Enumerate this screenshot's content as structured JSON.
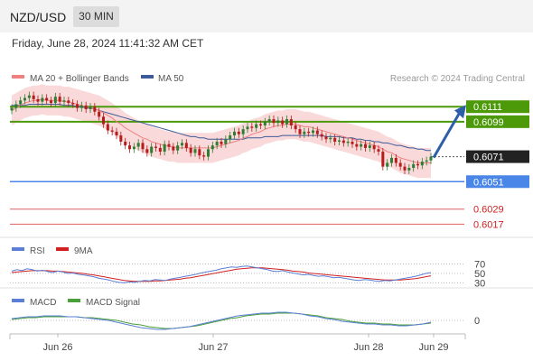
{
  "header": {
    "pair": "NZD/USD",
    "timeframe": "30 MIN",
    "datetime": "Friday, June 28, 2024 11:41:32 AM CET"
  },
  "legend": {
    "ma20": "MA 20 + Bollinger Bands",
    "ma50": "MA 50",
    "credit": "Research © 2024 Trading Central",
    "rsi": "RSI",
    "rsi_ma": "9MA",
    "macd": "MACD",
    "macd_signal": "MACD Signal"
  },
  "colors": {
    "ma20": "#f08080",
    "ma50": "#3d5a99",
    "bollinger_fill": "#f8cfcf",
    "candle_up": "#2e7d32",
    "candle_down": "#b71c1c",
    "resistance": "#4c9a0a",
    "support": "#4a86e8",
    "target": "#e06060",
    "current": "#222222",
    "arrow": "#2c5fa8",
    "rsi": "#5b7fd6",
    "rsi_ma": "#d12020",
    "macd": "#5b7fd6",
    "macd_signal": "#4aa03a"
  },
  "chart_data": [
    {
      "type": "candlestick",
      "title": "NZD/USD",
      "ylim": [
        0.601,
        0.6122
      ],
      "levels": [
        {
          "value": 0.6111,
          "label": "0.6111",
          "kind": "resistance"
        },
        {
          "value": 0.6099,
          "label": "0.6099",
          "kind": "resistance"
        },
        {
          "value": 0.6071,
          "label": "0.6071",
          "kind": "current"
        },
        {
          "value": 0.6051,
          "label": "0.6051",
          "kind": "support"
        },
        {
          "value": 0.6029,
          "label": "0.6029",
          "kind": "target"
        },
        {
          "value": 0.6017,
          "label": "0.6017",
          "kind": "target"
        }
      ],
      "x_ticks": [
        "Jun 26",
        "Jun 27",
        "Jun 28",
        "Jun 29"
      ],
      "close": [
        0.611,
        0.6113,
        0.6116,
        0.6118,
        0.612,
        0.6117,
        0.6115,
        0.6118,
        0.6116,
        0.6114,
        0.6119,
        0.6115,
        0.6116,
        0.6114,
        0.6113,
        0.611,
        0.6112,
        0.6109,
        0.6111,
        0.6107,
        0.6103,
        0.6097,
        0.6092,
        0.6091,
        0.6088,
        0.6083,
        0.608,
        0.6077,
        0.6079,
        0.6082,
        0.6077,
        0.6074,
        0.6079,
        0.6078,
        0.6075,
        0.6081,
        0.6079,
        0.6076,
        0.608,
        0.6082,
        0.6078,
        0.6074,
        0.6077,
        0.6072,
        0.6071,
        0.6077,
        0.608,
        0.6083,
        0.6081,
        0.6085,
        0.6088,
        0.6091,
        0.6089,
        0.6093,
        0.6095,
        0.6094,
        0.6097,
        0.6096,
        0.6099,
        0.6101,
        0.6098,
        0.61,
        0.6097,
        0.6101,
        0.6096,
        0.6093,
        0.6089,
        0.6091,
        0.609,
        0.6092,
        0.6089,
        0.6087,
        0.6085,
        0.6086,
        0.6083,
        0.6084,
        0.6082,
        0.6083,
        0.6081,
        0.6079,
        0.6081,
        0.6078,
        0.608,
        0.6077,
        0.6075,
        0.6063,
        0.6066,
        0.607,
        0.6066,
        0.6063,
        0.606,
        0.6062,
        0.6065,
        0.6064,
        0.6067,
        0.6068,
        0.6071
      ],
      "ma20": [
        0.6108,
        0.611,
        0.6112,
        0.6114,
        0.6115,
        0.6116,
        0.6116,
        0.6117,
        0.6116,
        0.6116,
        0.6116,
        0.6116,
        0.6115,
        0.6115,
        0.6114,
        0.6113,
        0.6112,
        0.6111,
        0.611,
        0.6109,
        0.6108,
        0.6106,
        0.6104,
        0.6102,
        0.6099,
        0.6097,
        0.6094,
        0.6092,
        0.609,
        0.6088,
        0.6086,
        0.6085,
        0.6083,
        0.6082,
        0.6081,
        0.608,
        0.6079,
        0.6079,
        0.6078,
        0.6078,
        0.6078,
        0.6078,
        0.6078,
        0.6078,
        0.6078,
        0.6078,
        0.6078,
        0.6079,
        0.608,
        0.6081,
        0.6082,
        0.6083,
        0.6084,
        0.6086,
        0.6087,
        0.6089,
        0.609,
        0.6091,
        0.6093,
        0.6094,
        0.6095,
        0.6096,
        0.6096,
        0.6097,
        0.6097,
        0.6097,
        0.6096,
        0.6095,
        0.6095,
        0.6094,
        0.6093,
        0.6092,
        0.6091,
        0.609,
        0.6089,
        0.6088,
        0.6087,
        0.6086,
        0.6085,
        0.6084,
        0.6083,
        0.6082,
        0.6081,
        0.608,
        0.6079,
        0.6077,
        0.6075,
        0.6074,
        0.6072,
        0.607,
        0.6069,
        0.6068,
        0.6067,
        0.6066,
        0.6066,
        0.6066,
        0.6066
      ],
      "ma50": [
        0.6112,
        0.6112,
        0.6112,
        0.6112,
        0.6113,
        0.6113,
        0.6113,
        0.6113,
        0.6113,
        0.6113,
        0.6113,
        0.6113,
        0.6112,
        0.6112,
        0.6112,
        0.6111,
        0.6111,
        0.611,
        0.611,
        0.6109,
        0.6108,
        0.6107,
        0.6106,
        0.6105,
        0.6104,
        0.6103,
        0.6102,
        0.6101,
        0.61,
        0.6099,
        0.6098,
        0.6097,
        0.6096,
        0.6095,
        0.6094,
        0.6093,
        0.6092,
        0.6091,
        0.609,
        0.6089,
        0.6088,
        0.6087,
        0.6087,
        0.6086,
        0.6086,
        0.6085,
        0.6085,
        0.6085,
        0.6085,
        0.6085,
        0.6085,
        0.6085,
        0.6085,
        0.6085,
        0.6086,
        0.6086,
        0.6086,
        0.6086,
        0.6087,
        0.6087,
        0.6087,
        0.6087,
        0.6088,
        0.6088,
        0.6088,
        0.6088,
        0.6088,
        0.6088,
        0.6088,
        0.6088,
        0.6088,
        0.6088,
        0.6087,
        0.6087,
        0.6087,
        0.6087,
        0.6086,
        0.6086,
        0.6086,
        0.6085,
        0.6085,
        0.6084,
        0.6084,
        0.6083,
        0.6083,
        0.6082,
        0.6082,
        0.6081,
        0.608,
        0.608,
        0.6079,
        0.6078,
        0.6078,
        0.6077,
        0.6077,
        0.6076,
        0.6076
      ],
      "band_width": 0.0012
    },
    {
      "type": "line",
      "title": "RSI",
      "ylim": [
        25,
        75
      ],
      "y_ticks": [
        70,
        50,
        30
      ],
      "series": [
        {
          "name": "RSI",
          "values": [
            55,
            58,
            56,
            60,
            58,
            55,
            57,
            54,
            52,
            55,
            53,
            50,
            51,
            48,
            47,
            45,
            43,
            40,
            38,
            36,
            33,
            31,
            30,
            32,
            31,
            33,
            35,
            34,
            37,
            36,
            35,
            38,
            40,
            42,
            44,
            46,
            48,
            51,
            53,
            55,
            57,
            60,
            62,
            64,
            63,
            65,
            66,
            64,
            62,
            60,
            58,
            55,
            54,
            56,
            53,
            51,
            49,
            47,
            48,
            46,
            44,
            45,
            43,
            41,
            42,
            40,
            38,
            36,
            35,
            37,
            36,
            34,
            33,
            35,
            34,
            36,
            38,
            40,
            42,
            44,
            47,
            50,
            52
          ]
        },
        {
          "name": "9MA",
          "values": [
            52,
            53,
            54,
            55,
            56,
            56,
            56,
            56,
            55,
            55,
            54,
            53,
            52,
            51,
            50,
            48,
            47,
            45,
            43,
            41,
            39,
            37,
            35,
            34,
            33,
            33,
            33,
            33,
            34,
            34,
            35,
            36,
            37,
            38,
            40,
            41,
            43,
            45,
            47,
            49,
            51,
            53,
            55,
            57,
            59,
            60,
            61,
            62,
            62,
            62,
            61,
            60,
            59,
            58,
            57,
            55,
            54,
            53,
            51,
            50,
            49,
            48,
            47,
            46,
            45,
            44,
            43,
            42,
            41,
            40,
            39,
            38,
            37,
            36,
            36,
            36,
            36,
            37,
            38,
            39,
            41,
            43,
            45
          ]
        }
      ]
    },
    {
      "type": "line",
      "title": "MACD",
      "ylim": [
        -0.0012,
        0.0012
      ],
      "y_ticks": [
        0
      ],
      "series": [
        {
          "name": "MACD",
          "values": [
            0.0002,
            0.0003,
            0.0004,
            0.0004,
            0.0005,
            0.0005,
            0.0005,
            0.0004,
            0.0004,
            0.0003,
            0.0002,
            0.0001,
            0.0,
            -0.0002,
            -0.0004,
            -0.0006,
            -0.0008,
            -0.0009,
            -0.001,
            -0.001,
            -0.0009,
            -0.0008,
            -0.0007,
            -0.0005,
            -0.0003,
            -0.0001,
            0.0001,
            0.0003,
            0.0005,
            0.0006,
            0.0007,
            0.0008,
            0.0008,
            0.0009,
            0.0009,
            0.0008,
            0.0007,
            0.0005,
            0.0004,
            0.0002,
            0.0001,
            -0.0001,
            -0.0002,
            -0.0003,
            -0.0004,
            -0.0004,
            -0.0005,
            -0.0005,
            -0.0006,
            -0.0006,
            -0.0005,
            -0.0004,
            -0.0002
          ]
        },
        {
          "name": "MACD Signal",
          "values": [
            0.0001,
            0.0002,
            0.0003,
            0.0003,
            0.0004,
            0.0004,
            0.0004,
            0.0004,
            0.0004,
            0.0003,
            0.0003,
            0.0002,
            0.0001,
            0.0,
            -0.0002,
            -0.0004,
            -0.0005,
            -0.0007,
            -0.0008,
            -0.0009,
            -0.0009,
            -0.0008,
            -0.0007,
            -0.0006,
            -0.0004,
            -0.0002,
            0.0,
            0.0002,
            0.0003,
            0.0005,
            0.0006,
            0.0007,
            0.0007,
            0.0008,
            0.0008,
            0.0008,
            0.0007,
            0.0006,
            0.0005,
            0.0003,
            0.0002,
            0.0001,
            -0.0001,
            -0.0002,
            -0.0003,
            -0.0003,
            -0.0004,
            -0.0004,
            -0.0005,
            -0.0005,
            -0.0005,
            -0.0004,
            -0.0003
          ]
        }
      ]
    }
  ]
}
